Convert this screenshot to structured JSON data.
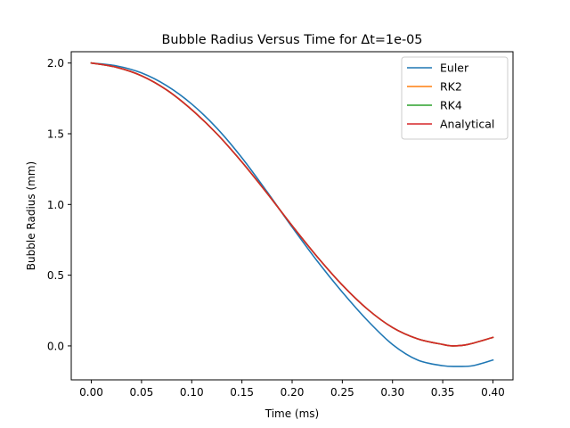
{
  "chart_data": {
    "type": "line",
    "title": "Bubble Radius Versus Time for Δt=1e-05",
    "xlabel": "Time (ms)",
    "ylabel": "Bubble Radius (mm)",
    "xlim": [
      -0.02,
      0.42
    ],
    "ylim": [
      -0.24,
      2.08
    ],
    "xticks": [
      "0.00",
      "0.05",
      "0.10",
      "0.15",
      "0.20",
      "0.25",
      "0.30",
      "0.35",
      "0.40"
    ],
    "yticks": [
      "0.0",
      "0.5",
      "1.0",
      "1.5",
      "2.0"
    ],
    "grid": false,
    "legend_position": "top-right",
    "series": [
      {
        "name": "Euler",
        "color": "#1f77b4",
        "x": [
          0.0,
          0.025,
          0.05,
          0.075,
          0.1,
          0.125,
          0.15,
          0.175,
          0.2,
          0.225,
          0.25,
          0.275,
          0.3,
          0.325,
          0.35,
          0.365,
          0.38,
          0.4
        ],
        "y": [
          2.0,
          1.98,
          1.93,
          1.84,
          1.71,
          1.54,
          1.33,
          1.09,
          0.84,
          0.6,
          0.38,
          0.18,
          0.01,
          -0.1,
          -0.14,
          -0.145,
          -0.14,
          -0.1
        ]
      },
      {
        "name": "RK2",
        "color": "#ff7f0e",
        "x": [
          0.0,
          0.025,
          0.05,
          0.075,
          0.1,
          0.125,
          0.15,
          0.175,
          0.2,
          0.225,
          0.25,
          0.275,
          0.3,
          0.325,
          0.35,
          0.36,
          0.375,
          0.4
        ],
        "y": [
          2.0,
          1.97,
          1.91,
          1.81,
          1.67,
          1.5,
          1.3,
          1.08,
          0.85,
          0.63,
          0.43,
          0.26,
          0.13,
          0.05,
          0.01,
          0.0,
          0.01,
          0.06
        ]
      },
      {
        "name": "RK4",
        "color": "#2ca02c",
        "x": [
          0.0,
          0.025,
          0.05,
          0.075,
          0.1,
          0.125,
          0.15,
          0.175,
          0.2,
          0.225,
          0.25,
          0.275,
          0.3,
          0.325,
          0.35,
          0.36,
          0.375,
          0.4
        ],
        "y": [
          2.0,
          1.97,
          1.91,
          1.81,
          1.67,
          1.5,
          1.3,
          1.08,
          0.85,
          0.63,
          0.43,
          0.26,
          0.13,
          0.05,
          0.01,
          0.0,
          0.01,
          0.06
        ]
      },
      {
        "name": "Analytical",
        "color": "#d62728",
        "x": [
          0.0,
          0.025,
          0.05,
          0.075,
          0.1,
          0.125,
          0.15,
          0.175,
          0.2,
          0.225,
          0.25,
          0.275,
          0.3,
          0.325,
          0.35,
          0.36,
          0.375,
          0.4
        ],
        "y": [
          2.0,
          1.97,
          1.91,
          1.81,
          1.67,
          1.5,
          1.3,
          1.08,
          0.85,
          0.63,
          0.43,
          0.26,
          0.13,
          0.05,
          0.01,
          0.0,
          0.01,
          0.06
        ]
      }
    ]
  }
}
